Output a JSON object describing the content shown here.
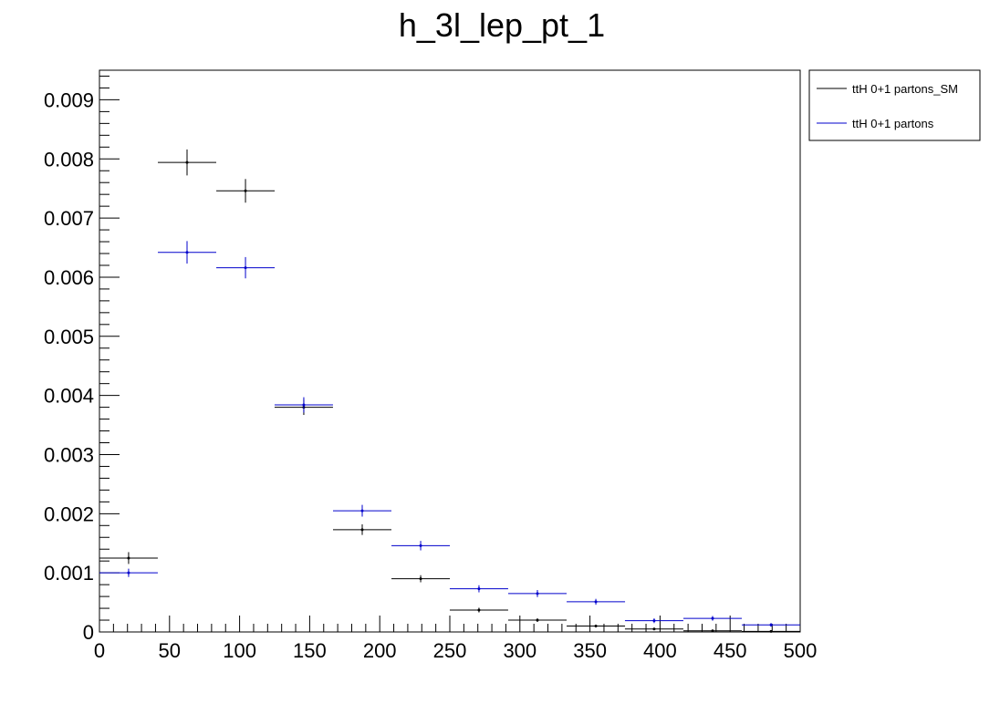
{
  "chart_data": {
    "type": "scatter",
    "title": "h_3l_lep_pt_1",
    "xlabel": "",
    "ylabel": "",
    "xlim": [
      0,
      500
    ],
    "ylim": [
      0,
      0.0095
    ],
    "x_ticks": [
      "0",
      "50",
      "100",
      "150",
      "200",
      "250",
      "300",
      "350",
      "400",
      "450",
      "500"
    ],
    "y_ticks": [
      "0",
      "0.001",
      "0.002",
      "0.003",
      "0.004",
      "0.005",
      "0.006",
      "0.007",
      "0.008",
      "0.009"
    ],
    "bin_width": 41.67,
    "grid": false,
    "legend_position": "top-right",
    "series": [
      {
        "name": "ttH 0+1 partons_SM",
        "color": "#000000",
        "x": [
          20.8,
          62.5,
          104.2,
          145.8,
          187.5,
          229.2,
          270.8,
          312.5,
          354.2,
          395.8,
          437.5,
          479.2
        ],
        "values": [
          0.00125,
          0.00794,
          0.00746,
          0.0038,
          0.00173,
          0.0009,
          0.00037,
          0.0002,
          0.0001,
          5e-05,
          2e-05,
          1e-05
        ],
        "errors": [
          0.0001,
          0.00022,
          0.0002,
          0.00013,
          9e-05,
          6e-05,
          4e-05,
          3e-05,
          2e-05,
          1.5e-05,
          1e-05,
          1e-05
        ]
      },
      {
        "name": "ttH 0+1 partons",
        "color": "#0000cc",
        "x": [
          20.8,
          62.5,
          104.2,
          145.8,
          187.5,
          229.2,
          270.8,
          312.5,
          354.2,
          395.8,
          437.5,
          479.2
        ],
        "values": [
          0.001,
          0.00642,
          0.00616,
          0.00384,
          0.00205,
          0.00146,
          0.00073,
          0.00065,
          0.00051,
          0.00019,
          0.00023,
          0.00012
        ],
        "errors": [
          7e-05,
          0.00019,
          0.00018,
          0.00013,
          0.0001,
          8e-05,
          6e-05,
          6e-05,
          5e-05,
          4e-05,
          4e-05,
          3e-05
        ]
      }
    ]
  }
}
